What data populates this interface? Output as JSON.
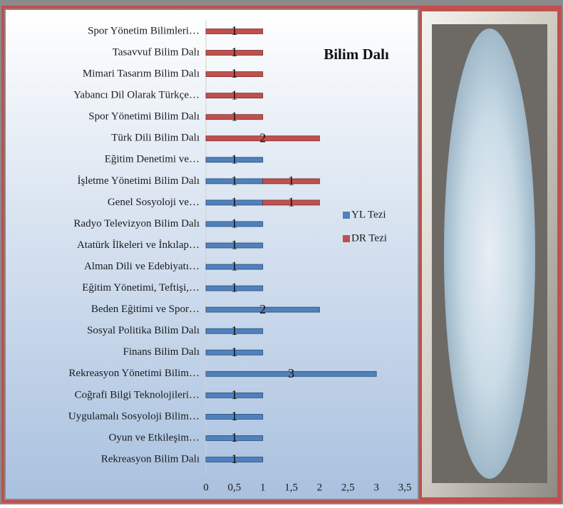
{
  "chart_data": {
    "type": "bar",
    "orientation": "horizontal",
    "stacked": true,
    "title": "Bilim Dalı",
    "categories": [
      "Spor Yönetim Bilimleri…",
      "Tasavvuf Bilim Dalı",
      "Mimari Tasarım Bilim Dalı",
      "Yabancı Dil Olarak Türkçe…",
      "Spor Yönetimi Bilim Dalı",
      "Türk Dili Bilim Dalı",
      "Eğitim Denetimi ve…",
      "İşletme Yönetimi Bilim Dalı",
      "Genel Sosyoloji ve…",
      "Radyo Televizyon Bilim Dalı",
      "Atatürk İlkeleri ve İnkılap…",
      "Alman Dili ve Edebiyatı…",
      "Eğitim Yönetimi, Teftişi,…",
      "Beden Eğitimi ve Spor…",
      "Sosyal Politika Bilim Dalı",
      "Finans Bilim Dalı",
      "Rekreasyon Yönetimi Bilim…",
      "Coğrafi Bilgi Teknolojileri…",
      "Uygulamalı Sosyoloji Bilim…",
      "Oyun ve Etkileşim…",
      "Rekreasyon Bilim Dalı"
    ],
    "series": [
      {
        "name": "YL Tezi",
        "color": "#4f81bd",
        "values": [
          null,
          null,
          null,
          null,
          null,
          null,
          1,
          1,
          1,
          1,
          1,
          1,
          1,
          2,
          1,
          1,
          3,
          1,
          1,
          1,
          1
        ]
      },
      {
        "name": "DR Tezi",
        "color": "#c0504d",
        "values": [
          1,
          1,
          1,
          1,
          1,
          2,
          null,
          1,
          1,
          null,
          null,
          null,
          null,
          null,
          null,
          null,
          null,
          null,
          null,
          null,
          null
        ]
      }
    ],
    "xlim": [
      0,
      3.5
    ],
    "xticks": [
      0,
      {
        "value": 0.5,
        "label": "0,5"
      },
      1,
      {
        "value": 1.5,
        "label": "1,5"
      },
      2,
      {
        "value": 2.5,
        "label": "2,5"
      },
      3,
      {
        "value": 3.5,
        "label": "3,5"
      }
    ],
    "legend": "right"
  }
}
